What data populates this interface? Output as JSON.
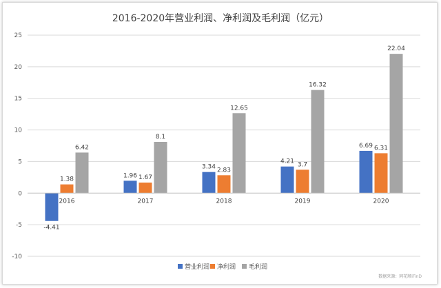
{
  "chart_data": {
    "type": "bar",
    "title": "2016-2020年营业利润、净利润及毛利润（亿元）",
    "categories": [
      "2016",
      "2017",
      "2018",
      "2019",
      "2020"
    ],
    "series": [
      {
        "name": "营业利润",
        "values": [
          -4.41,
          1.96,
          3.34,
          4.21,
          6.69
        ],
        "color": "#4472c4"
      },
      {
        "name": "净利润",
        "values": [
          1.38,
          1.67,
          2.83,
          3.7,
          6.31
        ],
        "color": "#ed7d31"
      },
      {
        "name": "毛利润",
        "values": [
          6.42,
          8.1,
          12.65,
          16.32,
          22.04
        ],
        "color": "#a5a5a5"
      }
    ],
    "yticks": [
      25,
      20,
      15,
      10,
      5,
      0,
      -5,
      -10
    ],
    "ylim": [
      -10,
      25
    ],
    "grid": true,
    "legend": "bottom",
    "source": "数据来源：同花顺iFinD"
  }
}
